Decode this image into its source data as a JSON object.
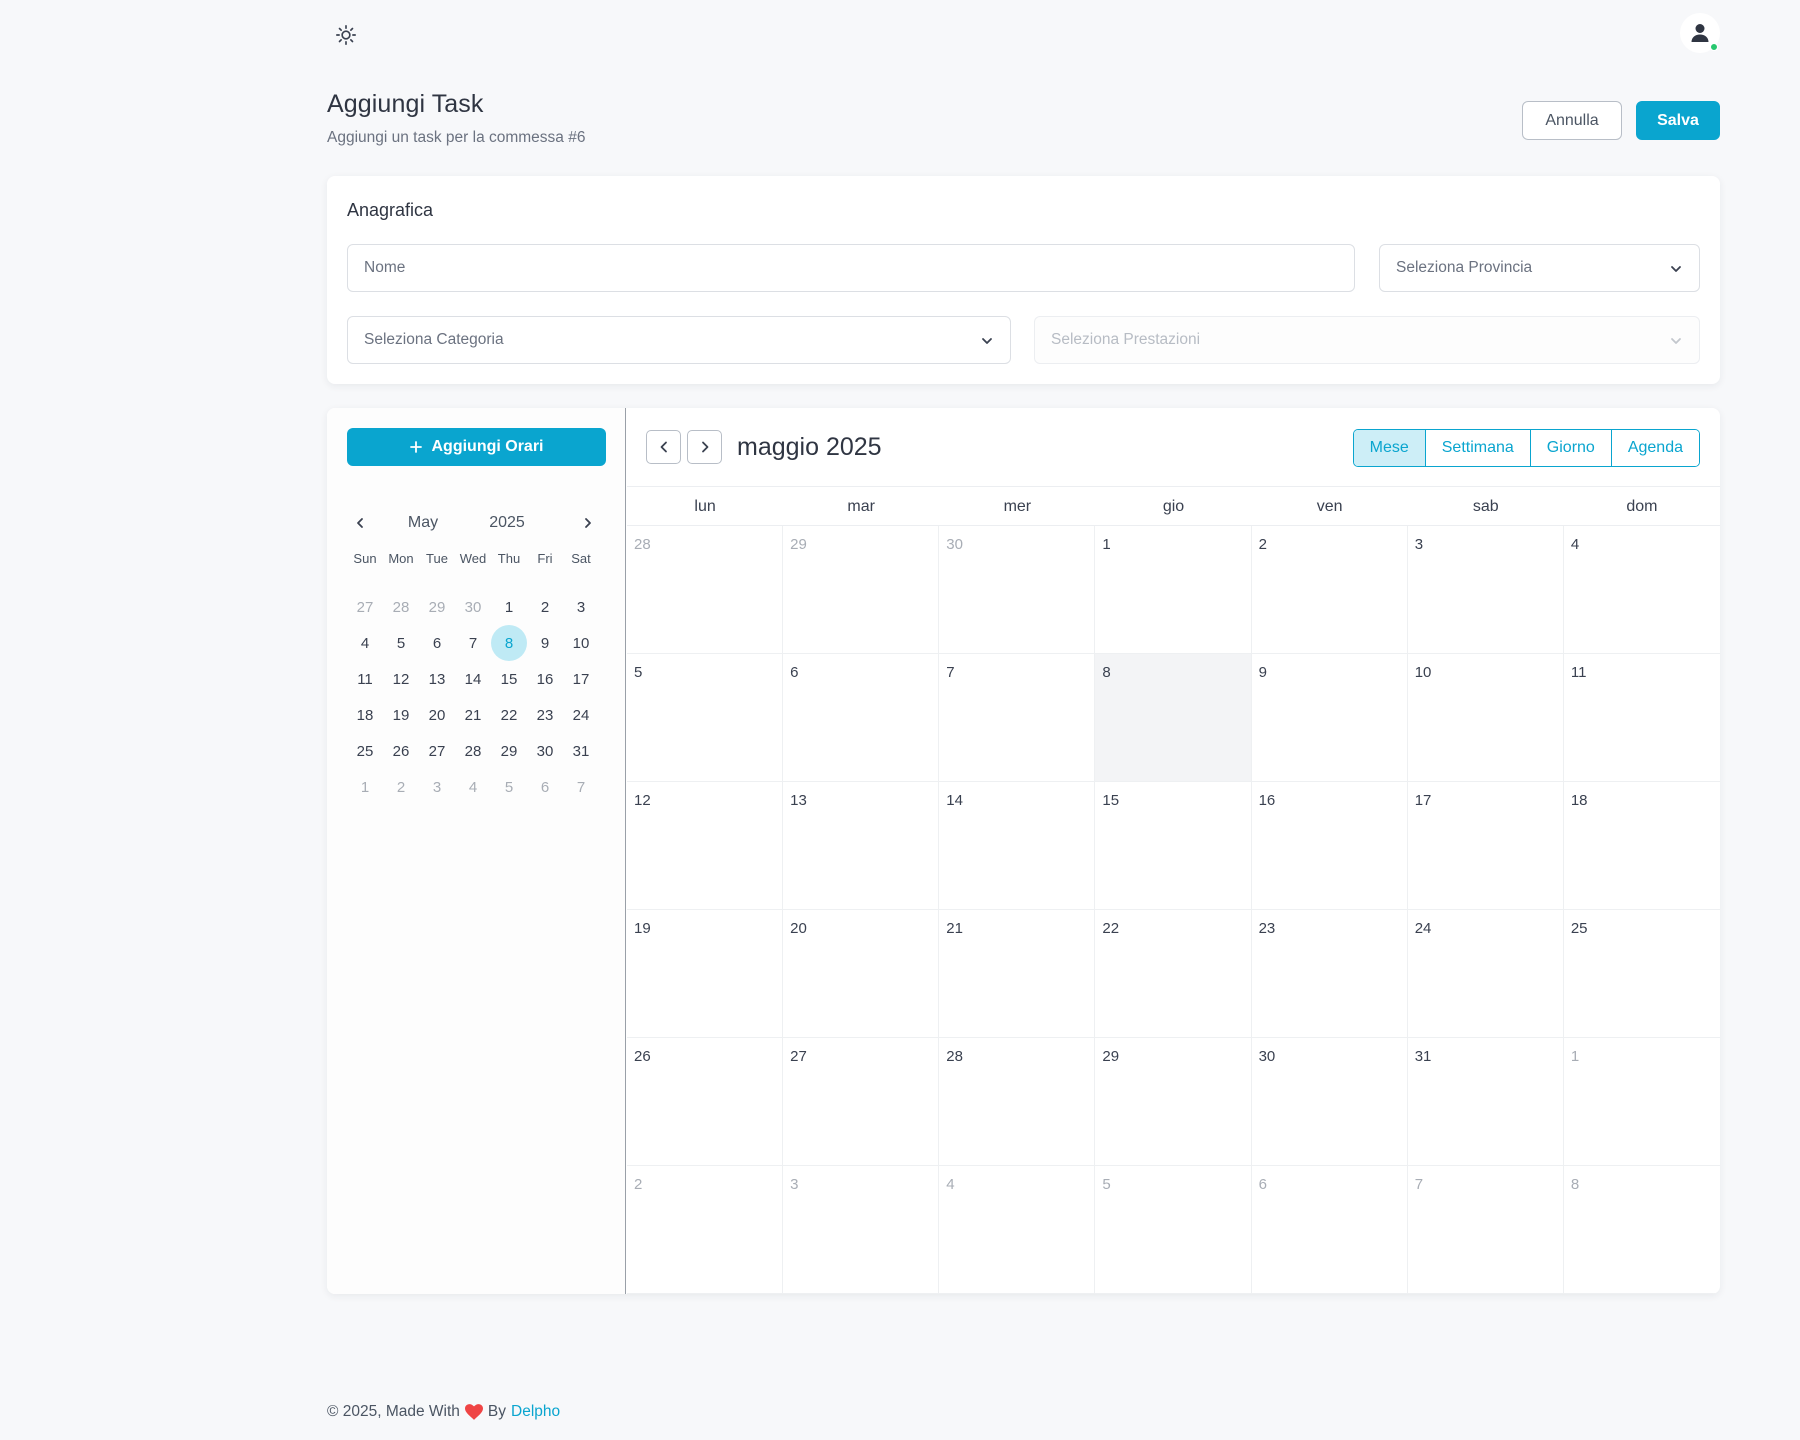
{
  "topbar": {
    "theme_icon": "sun-icon",
    "avatar_icon": "user-icon",
    "status_color": "#28c76f"
  },
  "header": {
    "title": "Aggiungi Task",
    "subtitle": "Aggiungi un task per la commessa #6",
    "cancel_label": "Annulla",
    "save_label": "Salva"
  },
  "anagrafica": {
    "title": "Anagrafica",
    "nome_placeholder": "Nome",
    "provincia_placeholder": "Seleziona Provincia",
    "categoria_placeholder": "Seleziona Categoria",
    "prestazioni_placeholder": "Seleziona Prestazioni"
  },
  "sidebar": {
    "add_label": "Aggiungi Orari",
    "mini_calendar": {
      "month": "May",
      "year": "2025",
      "weekdays": [
        "Sun",
        "Mon",
        "Tue",
        "Wed",
        "Thu",
        "Fri",
        "Sat"
      ],
      "days": [
        {
          "d": "27",
          "muted": true
        },
        {
          "d": "28",
          "muted": true
        },
        {
          "d": "29",
          "muted": true
        },
        {
          "d": "30",
          "muted": true
        },
        {
          "d": "1"
        },
        {
          "d": "2"
        },
        {
          "d": "3"
        },
        {
          "d": "4"
        },
        {
          "d": "5"
        },
        {
          "d": "6"
        },
        {
          "d": "7"
        },
        {
          "d": "8",
          "selected": true
        },
        {
          "d": "9"
        },
        {
          "d": "10"
        },
        {
          "d": "11"
        },
        {
          "d": "12"
        },
        {
          "d": "13"
        },
        {
          "d": "14"
        },
        {
          "d": "15"
        },
        {
          "d": "16"
        },
        {
          "d": "17"
        },
        {
          "d": "18"
        },
        {
          "d": "19"
        },
        {
          "d": "20"
        },
        {
          "d": "21"
        },
        {
          "d": "22"
        },
        {
          "d": "23"
        },
        {
          "d": "24"
        },
        {
          "d": "25"
        },
        {
          "d": "26"
        },
        {
          "d": "27"
        },
        {
          "d": "28"
        },
        {
          "d": "29"
        },
        {
          "d": "30"
        },
        {
          "d": "31"
        },
        {
          "d": "1",
          "muted": true
        },
        {
          "d": "2",
          "muted": true
        },
        {
          "d": "3",
          "muted": true
        },
        {
          "d": "4",
          "muted": true
        },
        {
          "d": "5",
          "muted": true
        },
        {
          "d": "6",
          "muted": true
        },
        {
          "d": "7",
          "muted": true
        }
      ]
    }
  },
  "calendar": {
    "title": "maggio 2025",
    "views": [
      {
        "label": "Mese",
        "active": true
      },
      {
        "label": "Settimana"
      },
      {
        "label": "Giorno"
      },
      {
        "label": "Agenda"
      }
    ],
    "weekdays": [
      "lun",
      "mar",
      "mer",
      "gio",
      "ven",
      "sab",
      "dom"
    ],
    "days": [
      {
        "d": "28",
        "muted": true
      },
      {
        "d": "29",
        "muted": true
      },
      {
        "d": "30",
        "muted": true
      },
      {
        "d": "1"
      },
      {
        "d": "2"
      },
      {
        "d": "3"
      },
      {
        "d": "4"
      },
      {
        "d": "5"
      },
      {
        "d": "6"
      },
      {
        "d": "7"
      },
      {
        "d": "8",
        "today": true
      },
      {
        "d": "9"
      },
      {
        "d": "10"
      },
      {
        "d": "11"
      },
      {
        "d": "12"
      },
      {
        "d": "13"
      },
      {
        "d": "14"
      },
      {
        "d": "15"
      },
      {
        "d": "16"
      },
      {
        "d": "17"
      },
      {
        "d": "18"
      },
      {
        "d": "19"
      },
      {
        "d": "20"
      },
      {
        "d": "21"
      },
      {
        "d": "22"
      },
      {
        "d": "23"
      },
      {
        "d": "24"
      },
      {
        "d": "25"
      },
      {
        "d": "26"
      },
      {
        "d": "27"
      },
      {
        "d": "28"
      },
      {
        "d": "29"
      },
      {
        "d": "30"
      },
      {
        "d": "31"
      },
      {
        "d": "1",
        "muted": true
      },
      {
        "d": "2",
        "muted": true
      },
      {
        "d": "3",
        "muted": true
      },
      {
        "d": "4",
        "muted": true
      },
      {
        "d": "5",
        "muted": true
      },
      {
        "d": "6",
        "muted": true
      },
      {
        "d": "7",
        "muted": true
      },
      {
        "d": "8",
        "muted": true
      }
    ]
  },
  "footer": {
    "text": "© 2025, Made With",
    "by": "By",
    "link": "Delpho",
    "heart_icon": "heart-icon"
  },
  "colors": {
    "accent": "#0aa5cf",
    "heart": "#ef4444"
  }
}
